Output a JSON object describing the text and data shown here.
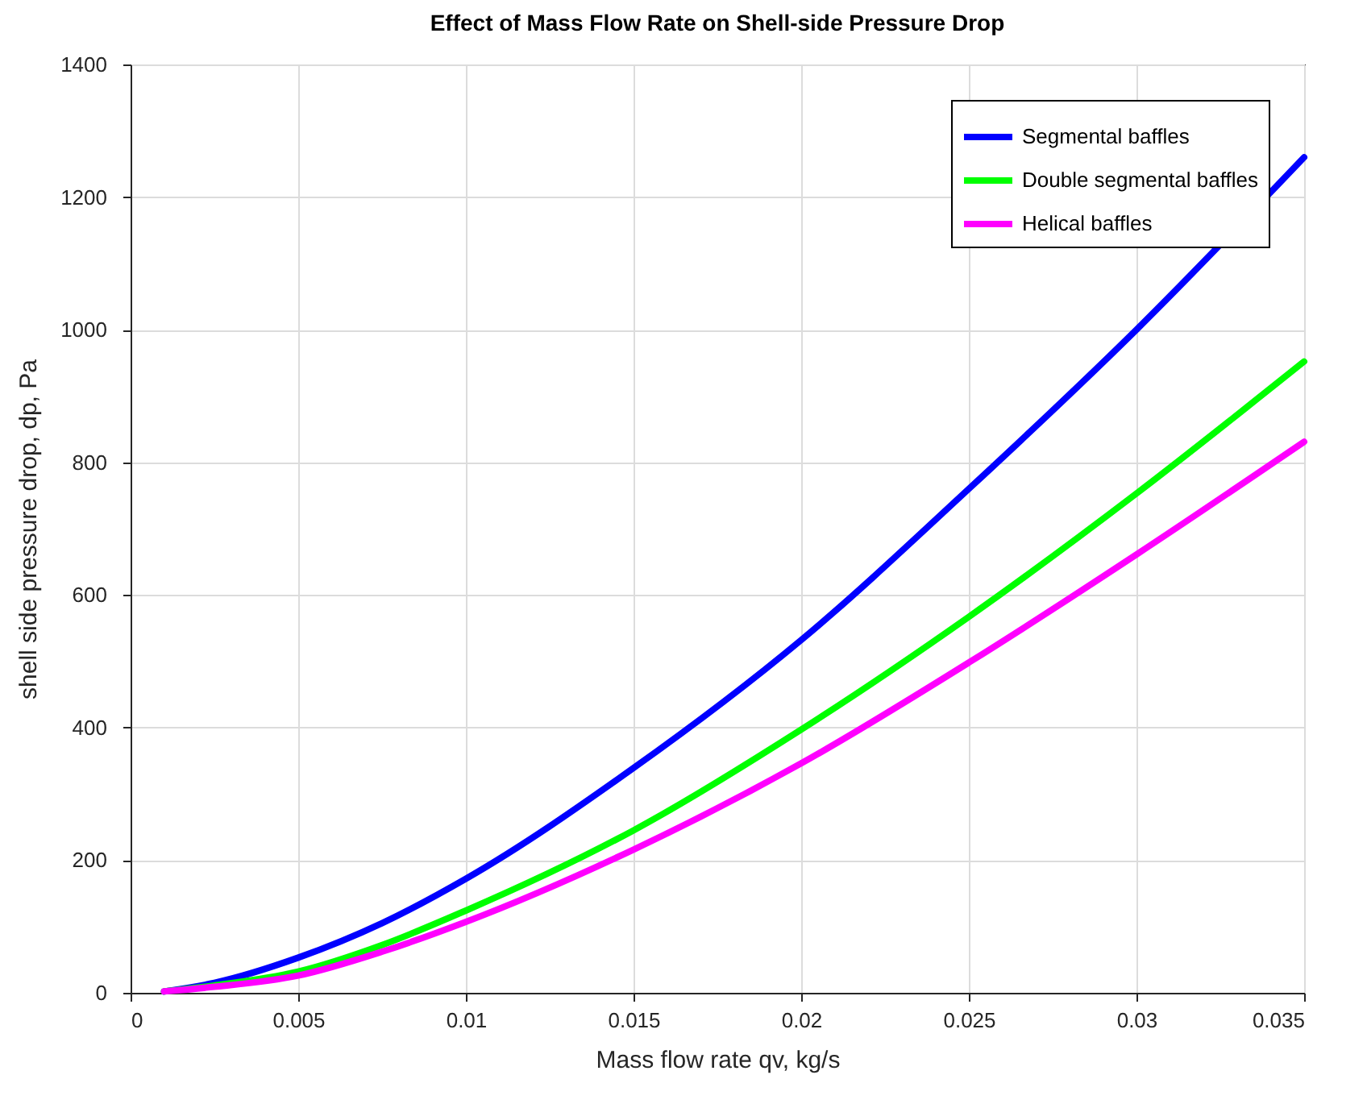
{
  "chart_data": {
    "type": "line",
    "title": "Effect of Mass Flow Rate on Shell-side Pressure Drop",
    "xlabel": "Mass flow rate qv, kg/s",
    "ylabel": "shell side pressure drop, dp, Pa",
    "x": [
      0.001,
      0.0025,
      0.005,
      0.0075,
      0.01,
      0.015,
      0.02,
      0.025,
      0.03,
      0.035
    ],
    "series": [
      {
        "name": "Segmental baffles",
        "color": "#0000ff",
        "values": [
          2,
          15,
          53,
          105,
          172,
          339,
          532,
          760,
          1000,
          1260
        ]
      },
      {
        "name": "Double segmental baffles",
        "color": "#00ff00",
        "values": [
          2,
          11,
          32,
          72,
          124,
          245,
          397,
          567,
          753,
          952
        ]
      },
      {
        "name": "Helical baffles",
        "color": "#ff00ff",
        "values": [
          2,
          9,
          26,
          62,
          107,
          216,
          346,
          498,
          661,
          831
        ]
      }
    ],
    "xlim": [
      0,
      0.035
    ],
    "xticks": [
      0,
      0.005,
      0.01,
      0.015,
      0.02,
      0.025,
      0.03,
      0.035
    ],
    "ylim": [
      0,
      1400
    ],
    "yticks": [
      0,
      200,
      400,
      600,
      800,
      1000,
      1200,
      1400
    ],
    "grid": true,
    "legend": "top right",
    "marker": "none",
    "line_style": "solid"
  }
}
